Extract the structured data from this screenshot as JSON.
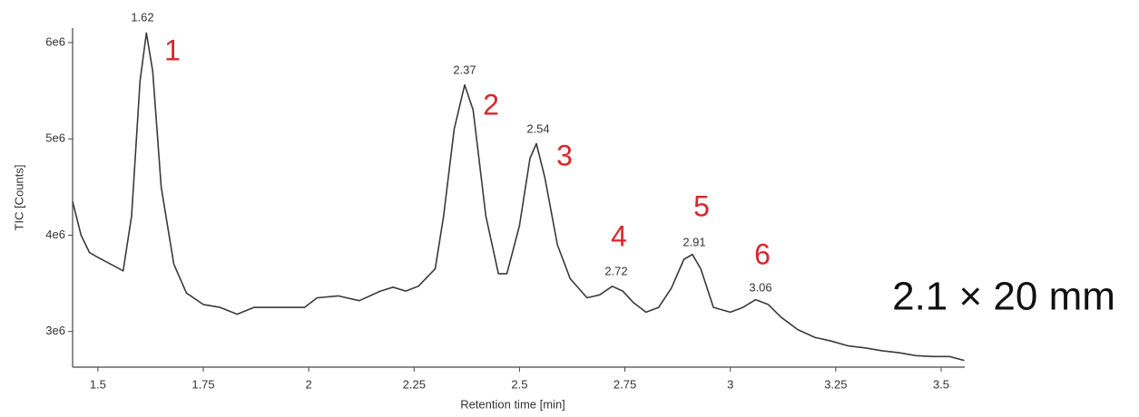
{
  "chart_data": {
    "type": "line",
    "xlabel": "Retention time [min]",
    "ylabel": "TIC [Counts]",
    "x": [
      1.44,
      1.46,
      1.48,
      1.5,
      1.53,
      1.56,
      1.58,
      1.6,
      1.615,
      1.63,
      1.65,
      1.68,
      1.71,
      1.75,
      1.79,
      1.83,
      1.87,
      1.92,
      1.96,
      1.99,
      2.02,
      2.07,
      2.12,
      2.17,
      2.2,
      2.23,
      2.26,
      2.3,
      2.32,
      2.345,
      2.37,
      2.39,
      2.42,
      2.45,
      2.47,
      2.5,
      2.525,
      2.54,
      2.56,
      2.59,
      2.62,
      2.66,
      2.69,
      2.72,
      2.745,
      2.77,
      2.8,
      2.83,
      2.86,
      2.89,
      2.91,
      2.93,
      2.96,
      3.0,
      3.03,
      3.06,
      3.09,
      3.12,
      3.16,
      3.2,
      3.24,
      3.28,
      3.32,
      3.36,
      3.4,
      3.44,
      3.48,
      3.52,
      3.555
    ],
    "values": [
      4350000,
      4000000,
      3820000,
      3770000,
      3700000,
      3630000,
      4200000,
      5600000,
      6100000,
      5700000,
      4500000,
      3700000,
      3400000,
      3280000,
      3250000,
      3180000,
      3250000,
      3250000,
      3250000,
      3250000,
      3350000,
      3370000,
      3320000,
      3420000,
      3460000,
      3420000,
      3470000,
      3650000,
      4200000,
      5100000,
      5560000,
      5300000,
      4200000,
      3600000,
      3600000,
      4100000,
      4800000,
      4950000,
      4600000,
      3900000,
      3550000,
      3350000,
      3380000,
      3470000,
      3420000,
      3300000,
      3200000,
      3250000,
      3450000,
      3750000,
      3800000,
      3650000,
      3250000,
      3200000,
      3250000,
      3330000,
      3280000,
      3150000,
      3020000,
      2940000,
      2900000,
      2850000,
      2830000,
      2800000,
      2780000,
      2750000,
      2740000,
      2740000,
      2700000
    ],
    "color": "#3a3a3a",
    "xlim": [
      1.44,
      3.556
    ],
    "ylim": [
      2630000,
      6150000
    ],
    "xticks": [
      1.5,
      1.75,
      2,
      2.25,
      2.5,
      2.75,
      3,
      3.25,
      3.5
    ],
    "yticks": [
      {
        "value": 3000000,
        "label": "3e6"
      },
      {
        "value": 4000000,
        "label": "4e6"
      },
      {
        "value": 5000000,
        "label": "5e6"
      },
      {
        "value": 6000000,
        "label": "6e6"
      }
    ],
    "peak_labels": [
      "1.62",
      "2.37",
      "2.54",
      "2.72",
      "2.91",
      "3.06"
    ],
    "peak_numbers": [
      "1",
      "2",
      "3",
      "4",
      "5",
      "6"
    ],
    "note": "2.1 × 20 mm"
  }
}
